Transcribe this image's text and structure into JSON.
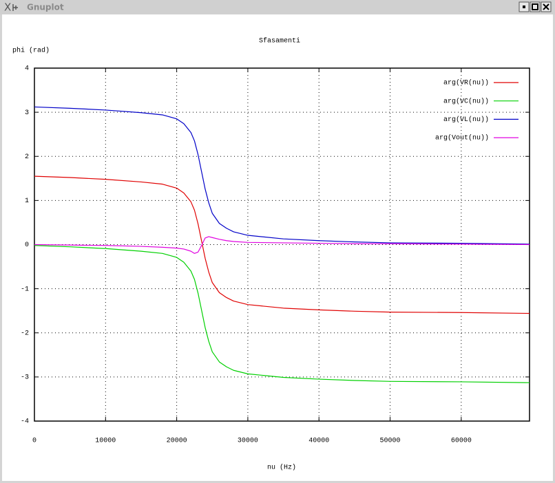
{
  "window": {
    "title": "Gnuplot"
  },
  "chart_data": {
    "type": "line",
    "title": "Sfasamenti",
    "x_label": "nu (Hz)",
    "y_label": "phi (rad)",
    "x": [
      0,
      5000,
      10000,
      15000,
      18000,
      20000,
      21000,
      22000,
      22500,
      23000,
      23500,
      24000,
      24500,
      25000,
      26000,
      27000,
      28000,
      30000,
      35000,
      40000,
      45000,
      50000,
      60000,
      69600
    ],
    "series": [
      {
        "name": "arg(VR(nu))",
        "color": "#e00000",
        "values": [
          1.55,
          1.52,
          1.48,
          1.42,
          1.37,
          1.28,
          1.17,
          0.97,
          0.78,
          0.47,
          0.08,
          -0.31,
          -0.62,
          -0.86,
          -1.09,
          -1.2,
          -1.28,
          -1.36,
          -1.44,
          -1.48,
          -1.51,
          -1.53,
          -1.54,
          -1.56
        ]
      },
      {
        "name": "arg(VC(nu))",
        "color": "#00d000",
        "values": [
          -0.02,
          -0.05,
          -0.09,
          -0.15,
          -0.2,
          -0.29,
          -0.4,
          -0.6,
          -0.79,
          -1.1,
          -1.49,
          -1.88,
          -2.19,
          -2.43,
          -2.66,
          -2.77,
          -2.85,
          -2.93,
          -3.01,
          -3.05,
          -3.08,
          -3.1,
          -3.11,
          -3.13
        ]
      },
      {
        "name": "arg(VL(nu))",
        "color": "#0000c8",
        "values": [
          3.12,
          3.09,
          3.05,
          2.99,
          2.94,
          2.85,
          2.74,
          2.54,
          2.35,
          2.04,
          1.65,
          1.26,
          0.95,
          0.71,
          0.48,
          0.37,
          0.29,
          0.21,
          0.13,
          0.09,
          0.06,
          0.04,
          0.03,
          0.01
        ]
      },
      {
        "name": "arg(Vout(nu))",
        "color": "#e000e0",
        "values": [
          0,
          -0.01,
          -0.02,
          -0.04,
          -0.06,
          -0.08,
          -0.1,
          -0.15,
          -0.2,
          -0.17,
          -0.02,
          0.15,
          0.18,
          0.16,
          0.12,
          0.09,
          0.07,
          0.05,
          0.04,
          0.03,
          0.02,
          0.02,
          0.01,
          0
        ]
      }
    ],
    "xlim": [
      0,
      69600
    ],
    "ylim": [
      -4,
      4
    ],
    "xticks": [
      0,
      10000,
      20000,
      30000,
      40000,
      50000,
      60000
    ],
    "yticks": [
      -4,
      -3,
      -2,
      -1,
      0,
      1,
      2,
      3,
      4
    ],
    "grid": true,
    "legend": "top-right"
  }
}
